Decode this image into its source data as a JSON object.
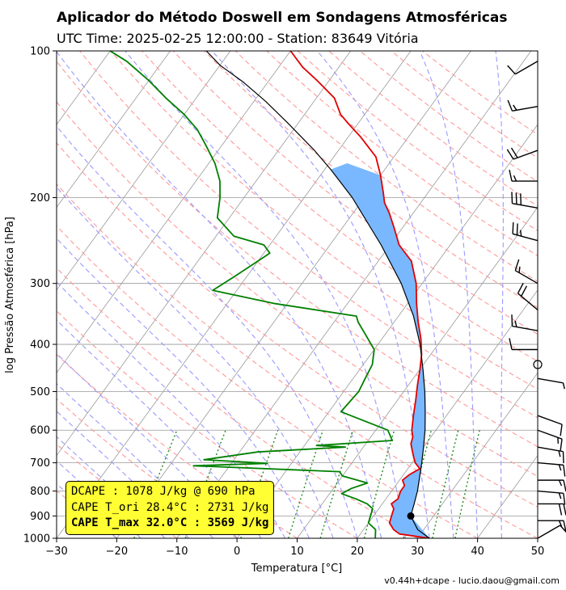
{
  "title": "Aplicador do Método Doswell em Sondagens Atmosféricas",
  "subtitle": "UTC Time: 2025-02-25 12:00:00 - Station: 83649 Vitória",
  "footer": "v0.44h+dcape  -  lucio.daou@gmail.com",
  "info_box": [
    "DCAPE : 1078 J/kg @ 690 hPa",
    "CAPE T_ori 28.4°C : 2731 J/kg",
    "CAPE T_max 32.0°C : 3569 J/kg"
  ],
  "colors": {
    "temperature": "#e00000",
    "dewpoint": "#008000",
    "parcel": "#000000",
    "cape_fill": "#79b8ff",
    "dry_adiabats": "#ff9999",
    "moist_adiabats": "#9999ff",
    "mixing_ratio": "#228b22",
    "isotherms": "#999999",
    "info_box_bg": "#ffff33"
  },
  "chart_data": {
    "type": "skew-t",
    "xlabel": "Temperatura [°C]",
    "ylabel": "log Pressão Atmosférica [hPa]",
    "xlim": [
      -30,
      50
    ],
    "ylim": [
      1000,
      100
    ],
    "y_scale": "log",
    "x_ticks": [
      "−30",
      "−20",
      "−10",
      "0",
      "10",
      "20",
      "30",
      "40",
      "50"
    ],
    "y_ticks": [
      "100",
      "200",
      "300",
      "400",
      "500",
      "600",
      "700",
      "800",
      "900",
      "1000"
    ],
    "grid": true,
    "series": [
      {
        "key": "temperature",
        "points": [
          [
            32.0,
            1000
          ],
          [
            26.5,
            980
          ],
          [
            25.0,
            960
          ],
          [
            23.5,
            930
          ],
          [
            23.0,
            900
          ],
          [
            22.5,
            870
          ],
          [
            21.5,
            850
          ],
          [
            22.0,
            830
          ],
          [
            21.5,
            800
          ],
          [
            21.5,
            780
          ],
          [
            20.5,
            760
          ],
          [
            21.0,
            740
          ],
          [
            22.0,
            720
          ],
          [
            20.5,
            700
          ],
          [
            19.5,
            680
          ],
          [
            18.5,
            660
          ],
          [
            17.5,
            640
          ],
          [
            17.0,
            620
          ],
          [
            16.0,
            600
          ],
          [
            14.5,
            560
          ],
          [
            13.0,
            520
          ],
          [
            11.5,
            485
          ],
          [
            10.0,
            450
          ],
          [
            8.5,
            420
          ],
          [
            6.5,
            390
          ],
          [
            4.0,
            360
          ],
          [
            1.5,
            330
          ],
          [
            -1.0,
            300
          ],
          [
            -4.5,
            270
          ],
          [
            -8.5,
            250
          ],
          [
            -11.5,
            230
          ],
          [
            -14.0,
            215
          ],
          [
            -16.0,
            205
          ],
          [
            -17.5,
            195
          ],
          [
            -20.0,
            180
          ],
          [
            -23.0,
            165
          ],
          [
            -28.0,
            150
          ],
          [
            -32.0,
            140
          ],
          [
            -34.0,
            135
          ],
          [
            -37.0,
            125
          ],
          [
            -42.0,
            115
          ],
          [
            -46.0,
            108
          ],
          [
            -50.0,
            100
          ]
        ]
      },
      {
        "key": "dewpoint",
        "points": [
          [
            23.0,
            1000
          ],
          [
            22.5,
            980
          ],
          [
            22.0,
            960
          ],
          [
            20.0,
            930
          ],
          [
            19.5,
            900
          ],
          [
            19.0,
            870
          ],
          [
            17.5,
            850
          ],
          [
            15.0,
            830
          ],
          [
            12.0,
            810
          ],
          [
            13.0,
            790
          ],
          [
            15.0,
            770
          ],
          [
            10.0,
            745
          ],
          [
            9.0,
            730
          ],
          [
            -16.0,
            710
          ],
          [
            -4.0,
            702
          ],
          [
            -15.0,
            690
          ],
          [
            -7.0,
            665
          ],
          [
            7.0,
            650
          ],
          [
            2.0,
            645
          ],
          [
            14.0,
            630
          ],
          [
            12.0,
            600
          ],
          [
            2.0,
            550
          ],
          [
            2.5,
            500
          ],
          [
            2.0,
            470
          ],
          [
            1.5,
            440
          ],
          [
            0.0,
            410
          ],
          [
            -3.5,
            380
          ],
          [
            -6.0,
            360
          ],
          [
            -7.0,
            350
          ],
          [
            -22.0,
            330
          ],
          [
            -34.0,
            310
          ],
          [
            -32.0,
            290
          ],
          [
            -29.0,
            260
          ],
          [
            -31.0,
            250
          ],
          [
            -37.0,
            240
          ],
          [
            -42.0,
            220
          ],
          [
            -44.0,
            200
          ],
          [
            -46.0,
            185
          ],
          [
            -49.0,
            170
          ],
          [
            -53.0,
            155
          ],
          [
            -56.0,
            145
          ],
          [
            -60.0,
            135
          ],
          [
            -65.0,
            125
          ],
          [
            -70.0,
            115
          ],
          [
            -76.0,
            105
          ],
          [
            -80.0,
            100
          ]
        ]
      },
      {
        "key": "parcel",
        "points": [
          [
            32.0,
            1000
          ],
          [
            29.0,
            960
          ],
          [
            26.2,
            900
          ],
          [
            25.3,
            850
          ],
          [
            24.3,
            800
          ],
          [
            23.0,
            750
          ],
          [
            21.6,
            700
          ],
          [
            20.0,
            650
          ],
          [
            18.2,
            600
          ],
          [
            16.0,
            550
          ],
          [
            13.5,
            500
          ],
          [
            10.5,
            450
          ],
          [
            7.0,
            400
          ],
          [
            2.5,
            350
          ],
          [
            -3.5,
            300
          ],
          [
            -11.5,
            250
          ],
          [
            -22.0,
            200
          ],
          [
            -29.0,
            175
          ],
          [
            -34.0,
            160
          ],
          [
            -42.0,
            140
          ],
          [
            -48.0,
            127
          ],
          [
            -54.0,
            116
          ],
          [
            -60.0,
            107
          ],
          [
            -64.0,
            100
          ]
        ]
      }
    ],
    "lcl": [
      26.2,
      900
    ],
    "wind_barbs": [
      {
        "p": 105,
        "speed": 10,
        "dir": 240
      },
      {
        "p": 130,
        "speed": 15,
        "dir": 260
      },
      {
        "p": 160,
        "speed": 20,
        "dir": 250
      },
      {
        "p": 185,
        "speed": 15,
        "dir": 270
      },
      {
        "p": 210,
        "speed": 30,
        "dir": 280
      },
      {
        "p": 245,
        "speed": 25,
        "dir": 285
      },
      {
        "p": 300,
        "speed": 15,
        "dir": 300
      },
      {
        "p": 340,
        "speed": 20,
        "dir": 310
      },
      {
        "p": 375,
        "speed": 15,
        "dir": 280
      },
      {
        "p": 410,
        "speed": 10,
        "dir": 270
      },
      {
        "p": 470,
        "speed": 5,
        "dir": 100
      },
      {
        "p": 560,
        "speed": 10,
        "dir": 110
      },
      {
        "p": 600,
        "speed": 15,
        "dir": 110
      },
      {
        "p": 650,
        "speed": 15,
        "dir": 100
      },
      {
        "p": 700,
        "speed": 15,
        "dir": 95
      },
      {
        "p": 760,
        "speed": 15,
        "dir": 90
      },
      {
        "p": 800,
        "speed": 15,
        "dir": 95
      },
      {
        "p": 850,
        "speed": 20,
        "dir": 90
      },
      {
        "p": 920,
        "speed": 15,
        "dir": 90
      },
      {
        "p": 1000,
        "speed": 10,
        "dir": 60
      }
    ],
    "calm_wind_p": 440
  }
}
